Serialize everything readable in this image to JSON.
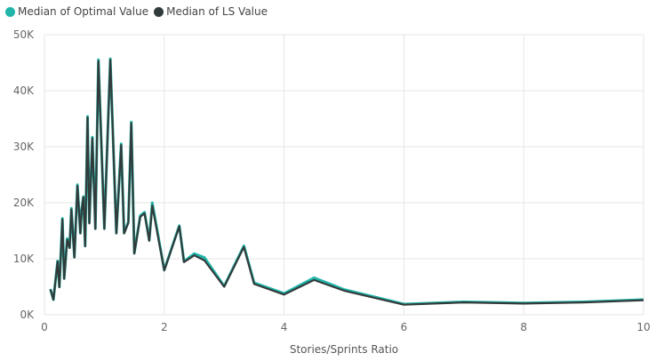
{
  "chart_data": {
    "type": "line",
    "title": "",
    "xlabel": "Stories/Sprints Ratio",
    "ylabel": "",
    "xlim": [
      0,
      10
    ],
    "ylim": [
      0,
      50000
    ],
    "x_ticks": [
      0,
      2,
      4,
      6,
      8,
      10
    ],
    "y_ticks": [
      {
        "value": 0,
        "label": "0K"
      },
      {
        "value": 10000,
        "label": "10K"
      },
      {
        "value": 20000,
        "label": "20K"
      },
      {
        "value": 30000,
        "label": "30K"
      },
      {
        "value": 40000,
        "label": "40K"
      },
      {
        "value": 50000,
        "label": "50K"
      }
    ],
    "grid": true,
    "legend_position": "top-left",
    "series": [
      {
        "name": "Median of Optimal Value",
        "color": "#1fb5a8",
        "points": [
          [
            0.1,
            4600
          ],
          [
            0.15,
            2700
          ],
          [
            0.22,
            9600
          ],
          [
            0.25,
            5000
          ],
          [
            0.3,
            17200
          ],
          [
            0.33,
            6500
          ],
          [
            0.38,
            13600
          ],
          [
            0.42,
            12000
          ],
          [
            0.45,
            19000
          ],
          [
            0.5,
            10300
          ],
          [
            0.55,
            23200
          ],
          [
            0.6,
            14600
          ],
          [
            0.62,
            18700
          ],
          [
            0.65,
            21100
          ],
          [
            0.68,
            12300
          ],
          [
            0.72,
            35400
          ],
          [
            0.75,
            16500
          ],
          [
            0.8,
            31700
          ],
          [
            0.85,
            15400
          ],
          [
            0.9,
            45500
          ],
          [
            1.0,
            15400
          ],
          [
            1.1,
            45700
          ],
          [
            1.2,
            14600
          ],
          [
            1.28,
            30500
          ],
          [
            1.33,
            14600
          ],
          [
            1.4,
            16600
          ],
          [
            1.45,
            34400
          ],
          [
            1.5,
            11000
          ],
          [
            1.6,
            17700
          ],
          [
            1.67,
            18300
          ],
          [
            1.75,
            13300
          ],
          [
            1.8,
            20000
          ],
          [
            2.0,
            8000
          ],
          [
            2.25,
            15900
          ],
          [
            2.33,
            9500
          ],
          [
            2.5,
            10900
          ],
          [
            2.67,
            10200
          ],
          [
            3.0,
            5100
          ],
          [
            3.33,
            12300
          ],
          [
            3.5,
            5700
          ],
          [
            4.0,
            3800
          ],
          [
            4.5,
            6600
          ],
          [
            5.0,
            4500
          ],
          [
            6.0,
            1900
          ],
          [
            7.0,
            2300
          ],
          [
            8.0,
            2100
          ],
          [
            9.0,
            2300
          ],
          [
            10.0,
            2700
          ]
        ]
      },
      {
        "name": "Median of LS Value",
        "color": "#323b3b",
        "points": [
          [
            0.1,
            4500
          ],
          [
            0.15,
            2700
          ],
          [
            0.22,
            9500
          ],
          [
            0.25,
            4900
          ],
          [
            0.3,
            17000
          ],
          [
            0.33,
            6400
          ],
          [
            0.38,
            13400
          ],
          [
            0.42,
            11900
          ],
          [
            0.45,
            18800
          ],
          [
            0.5,
            10200
          ],
          [
            0.55,
            23000
          ],
          [
            0.6,
            14500
          ],
          [
            0.62,
            18500
          ],
          [
            0.65,
            21000
          ],
          [
            0.68,
            12200
          ],
          [
            0.72,
            35200
          ],
          [
            0.75,
            16300
          ],
          [
            0.8,
            31500
          ],
          [
            0.85,
            15300
          ],
          [
            0.9,
            45300
          ],
          [
            1.0,
            15300
          ],
          [
            1.1,
            45500
          ],
          [
            1.2,
            14500
          ],
          [
            1.28,
            30300
          ],
          [
            1.33,
            14500
          ],
          [
            1.4,
            16400
          ],
          [
            1.45,
            34200
          ],
          [
            1.5,
            10900
          ],
          [
            1.6,
            17500
          ],
          [
            1.67,
            18100
          ],
          [
            1.75,
            13200
          ],
          [
            1.8,
            19500
          ],
          [
            2.0,
            7900
          ],
          [
            2.25,
            15800
          ],
          [
            2.33,
            9400
          ],
          [
            2.5,
            10600
          ],
          [
            2.67,
            9700
          ],
          [
            3.0,
            5000
          ],
          [
            3.33,
            12100
          ],
          [
            3.5,
            5500
          ],
          [
            4.0,
            3600
          ],
          [
            4.5,
            6200
          ],
          [
            5.0,
            4300
          ],
          [
            6.0,
            1800
          ],
          [
            7.0,
            2200
          ],
          [
            8.0,
            2000
          ],
          [
            9.0,
            2200
          ],
          [
            10.0,
            2600
          ]
        ]
      }
    ]
  }
}
